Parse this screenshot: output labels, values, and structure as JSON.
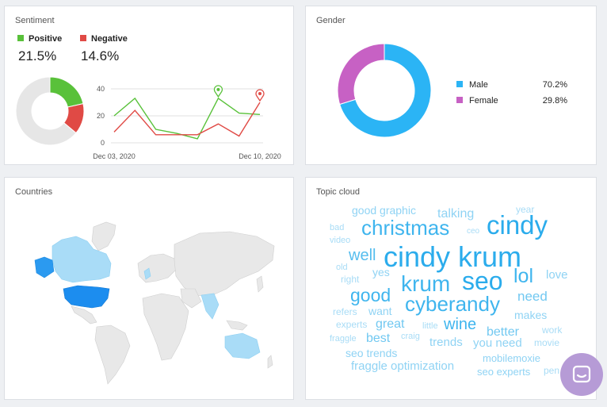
{
  "sentiment": {
    "title": "Sentiment",
    "positive_label": "Positive",
    "negative_label": "Negative",
    "positive_pct": "21.5%",
    "negative_pct": "14.6%",
    "colors": {
      "positive": "#59c13a",
      "negative": "#e04a45",
      "neutral": "#e6e6e6"
    }
  },
  "gender": {
    "title": "Gender",
    "items": [
      {
        "label": "Male",
        "value": "70.2%",
        "color": "#2bb4f5"
      },
      {
        "label": "Female",
        "value": "29.8%",
        "color": "#c761c4"
      }
    ]
  },
  "countries": {
    "title": "Countries"
  },
  "topic_cloud": {
    "title": "Topic cloud",
    "words": [
      "good graphic",
      "year",
      "bad",
      "talking",
      "christmas",
      "cindy",
      "ceo",
      "video",
      "well",
      "cindy krum",
      "old",
      "yes",
      "lol",
      "love",
      "right",
      "krum",
      "seo",
      "good",
      "need",
      "cyberandy",
      "refers",
      "want",
      "makes",
      "experts",
      "great",
      "wine",
      "little",
      "better",
      "work",
      "fraggle",
      "best",
      "craig",
      "trends",
      "you need",
      "movie",
      "seo trends",
      "mobilemoxie",
      "fraggle optimization",
      "seo experts",
      "pen"
    ]
  },
  "chart_data": [
    {
      "type": "pie",
      "title": "",
      "labels": [
        "Positive",
        "Negative",
        "Other"
      ],
      "values": [
        21.5,
        14.6,
        63.9
      ]
    },
    {
      "type": "line",
      "title": "",
      "x": [
        "Dec 03, 2020",
        "Dec 04, 2020",
        "Dec 05, 2020",
        "Dec 06, 2020",
        "Dec 07, 2020",
        "Dec 08, 2020",
        "Dec 09, 2020",
        "Dec 10, 2020"
      ],
      "tick_labels_x": [
        "Dec 03, 2020",
        "Dec 10, 2020"
      ],
      "series": [
        {
          "name": "Positive",
          "values": [
            20,
            33,
            10,
            7,
            3,
            33,
            22,
            21
          ]
        },
        {
          "name": "Negative",
          "values": [
            8,
            24,
            6,
            6,
            6,
            14,
            5,
            30
          ]
        }
      ],
      "ylim": [
        0,
        40
      ],
      "yticks": [
        "0",
        "20",
        "40"
      ],
      "grid": true
    },
    {
      "type": "pie",
      "title": "",
      "labels": [
        "Male",
        "Female"
      ],
      "values": [
        70.2,
        29.8
      ]
    }
  ]
}
